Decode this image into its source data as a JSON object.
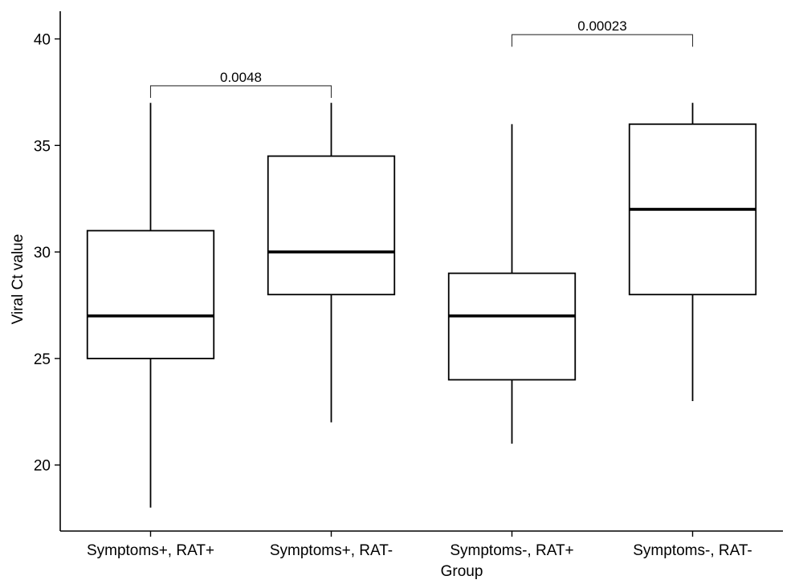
{
  "chart_data": {
    "type": "box",
    "xlabel": "Group",
    "ylabel": "Viral Ct value",
    "ylim": [
      16.9,
      41.3
    ],
    "yticks": [
      20,
      25,
      30,
      35,
      40
    ],
    "grid": false,
    "categories": [
      "Symptoms+, RAT+",
      "Symptoms+, RAT-",
      "Symptoms-, RAT+",
      "Symptoms-, RAT-"
    ],
    "boxes": [
      {
        "min": 18,
        "q1": 25,
        "median": 27,
        "q3": 31,
        "max": 37
      },
      {
        "min": 22,
        "q1": 28,
        "median": 30,
        "q3": 34.5,
        "max": 37
      },
      {
        "min": 21,
        "q1": 24,
        "median": 27,
        "q3": 29,
        "max": 36
      },
      {
        "min": 23,
        "q1": 28,
        "median": 32,
        "q3": 36,
        "max": 37
      }
    ],
    "comparisons": [
      {
        "groups": [
          0,
          1
        ],
        "y": 37.8,
        "label": "0.0048"
      },
      {
        "groups": [
          2,
          3
        ],
        "y": 40.2,
        "label": "0.00023"
      }
    ]
  }
}
